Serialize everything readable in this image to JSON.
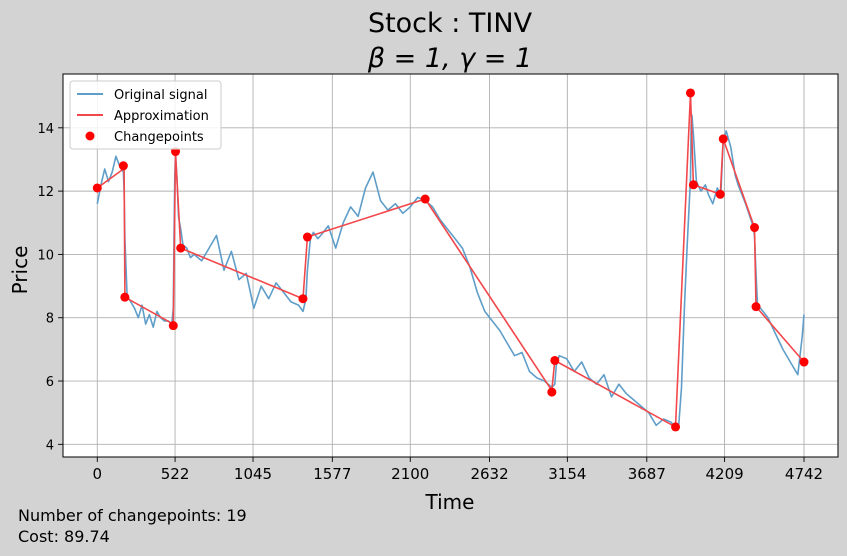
{
  "chart_data": {
    "type": "line",
    "title": "Stock : TINV",
    "subtitle": "β = 1, γ = 1",
    "xlabel": "Time",
    "ylabel": "Price",
    "xlim": [
      -230,
      4970
    ],
    "ylim": [
      3.6,
      15.7
    ],
    "xticks": [
      0,
      522,
      1045,
      1577,
      2100,
      2632,
      3154,
      3687,
      4209,
      4742
    ],
    "yticks": [
      4,
      6,
      8,
      10,
      12,
      14
    ],
    "grid": true,
    "legend_position": "top-left",
    "legend": [
      "Original signal",
      "Approximation",
      "Changepoints"
    ],
    "colors": {
      "signal": "#5f9ec9",
      "approximation": "#f2484b",
      "changepoints": "#ff0000"
    },
    "series": [
      {
        "name": "Original signal",
        "x": [
          0,
          25,
          50,
          75,
          100,
          125,
          150,
          175,
          180,
          185,
          200,
          225,
          250,
          275,
          300,
          325,
          350,
          375,
          400,
          425,
          450,
          475,
          500,
          510,
          515,
          520,
          525,
          535,
          545,
          560,
          575,
          600,
          625,
          650,
          700,
          750,
          800,
          850,
          900,
          950,
          1000,
          1050,
          1100,
          1150,
          1200,
          1250,
          1300,
          1350,
          1380,
          1400,
          1410,
          1430,
          1450,
          1480,
          1500,
          1550,
          1600,
          1650,
          1700,
          1750,
          1800,
          1850,
          1900,
          1950,
          2000,
          2050,
          2100,
          2150,
          2200,
          2250,
          2300,
          2350,
          2400,
          2450,
          2500,
          2550,
          2600,
          2650,
          2700,
          2750,
          2800,
          2850,
          2900,
          2950,
          3000,
          3050,
          3070,
          3080,
          3100,
          3150,
          3200,
          3250,
          3300,
          3350,
          3400,
          3450,
          3500,
          3550,
          3600,
          3650,
          3700,
          3750,
          3800,
          3850,
          3880,
          3900,
          3920,
          3940,
          3960,
          3980,
          3985,
          3990,
          4000,
          4020,
          4050,
          4080,
          4100,
          4130,
          4160,
          4180,
          4185,
          4200,
          4220,
          4250,
          4280,
          4300,
          4350,
          4400,
          4410,
          4420,
          4430,
          4450,
          4500,
          4550,
          4600,
          4650,
          4700,
          4730,
          4742
        ],
        "y": [
          11.6,
          12.2,
          12.7,
          12.3,
          12.6,
          13.1,
          12.8,
          12.6,
          12.0,
          10.5,
          8.7,
          8.5,
          8.3,
          8.0,
          8.4,
          7.8,
          8.1,
          7.7,
          8.2,
          8.0,
          7.9,
          7.9,
          7.8,
          8.3,
          10.5,
          12.5,
          13.2,
          12.4,
          11.2,
          10.8,
          10.3,
          10.2,
          9.9,
          10.0,
          9.8,
          10.2,
          10.6,
          9.5,
          10.1,
          9.2,
          9.4,
          8.3,
          9.0,
          8.6,
          9.1,
          8.8,
          8.5,
          8.4,
          8.2,
          8.6,
          9.5,
          10.5,
          10.7,
          10.5,
          10.6,
          10.9,
          10.2,
          11.0,
          11.5,
          11.2,
          12.1,
          12.6,
          11.7,
          11.4,
          11.6,
          11.3,
          11.5,
          11.8,
          11.7,
          11.5,
          11.1,
          10.8,
          10.5,
          10.2,
          9.6,
          8.8,
          8.2,
          7.9,
          7.6,
          7.2,
          6.8,
          6.9,
          6.3,
          6.1,
          6.0,
          5.8,
          5.9,
          6.5,
          6.8,
          6.7,
          6.3,
          6.6,
          6.1,
          5.9,
          6.2,
          5.5,
          5.9,
          5.6,
          5.4,
          5.2,
          5.0,
          4.6,
          4.8,
          4.7,
          4.5,
          4.5,
          5.8,
          8.4,
          10.5,
          12.4,
          14.2,
          14.4,
          13.8,
          12.3,
          12.0,
          12.2,
          11.9,
          11.6,
          12.1,
          11.9,
          12.0,
          13.6,
          13.9,
          13.4,
          12.5,
          12.2,
          11.6,
          10.9,
          10.6,
          9.4,
          8.4,
          8.3,
          8.0,
          7.5,
          7.0,
          6.6,
          6.2,
          7.4,
          8.1
        ]
      },
      {
        "name": "Approximation",
        "x": [
          0,
          175,
          180,
          185,
          510,
          525,
          560,
          1380,
          1410,
          2200,
          3050,
          3070,
          3880,
          3980,
          4000,
          4180,
          4200,
          4410,
          4420,
          4742
        ],
        "y": [
          12.1,
          12.7,
          12.8,
          8.65,
          7.8,
          13.2,
          10.2,
          8.6,
          10.55,
          11.75,
          5.7,
          6.65,
          4.55,
          15.1,
          12.2,
          11.9,
          13.65,
          10.85,
          8.35,
          6.6
        ]
      },
      {
        "name": "Changepoints",
        "x": [
          0,
          175,
          185,
          510,
          525,
          560,
          1380,
          1410,
          2200,
          3050,
          3070,
          3880,
          3980,
          4000,
          4180,
          4200,
          4410,
          4420,
          4742
        ],
        "y": [
          12.1,
          12.8,
          8.65,
          7.75,
          13.25,
          10.2,
          8.6,
          10.55,
          11.75,
          5.65,
          6.65,
          4.55,
          15.1,
          12.2,
          11.9,
          13.65,
          10.85,
          8.35,
          6.6
        ]
      }
    ]
  },
  "footer": {
    "changepoints_text": "Number of changepoints: 19",
    "cost_text": "Cost: 89.74"
  }
}
